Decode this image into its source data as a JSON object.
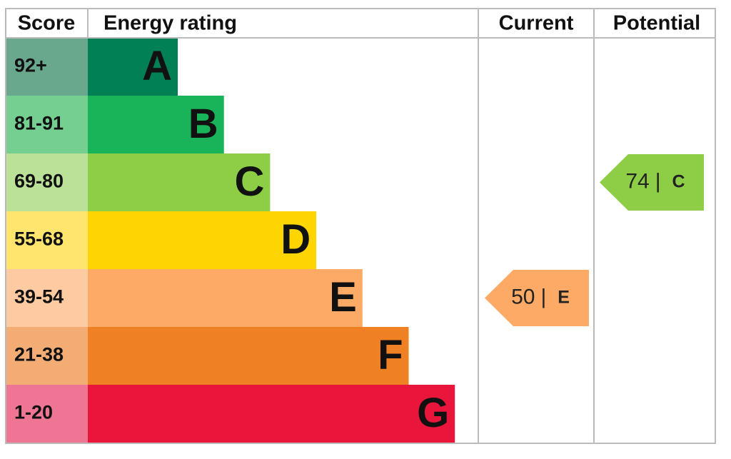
{
  "chart_data": {
    "type": "epc",
    "headers": {
      "score": "Score",
      "rating": "Energy rating",
      "current": "Current",
      "potential": "Potential"
    },
    "bands": [
      {
        "score": "92+",
        "letter": "A",
        "color": "#008054",
        "tint": "#6aa88e"
      },
      {
        "score": "81-91",
        "letter": "B",
        "color": "#19b459",
        "tint": "#74cf91"
      },
      {
        "score": "69-80",
        "letter": "C",
        "color": "#8dce46",
        "tint": "#bbe098"
      },
      {
        "score": "55-68",
        "letter": "D",
        "color": "#ffd500",
        "tint": "#ffe46e"
      },
      {
        "score": "39-54",
        "letter": "E",
        "color": "#fcaa65",
        "tint": "#fdcaa2"
      },
      {
        "score": "21-38",
        "letter": "F",
        "color": "#ef8023",
        "tint": "#f3ad74"
      },
      {
        "score": "1-20",
        "letter": "G",
        "color": "#e9153b",
        "tint": "#ef7595"
      }
    ],
    "current": {
      "value": 50,
      "letter": "E"
    },
    "potential": {
      "value": 74,
      "letter": "C"
    }
  }
}
